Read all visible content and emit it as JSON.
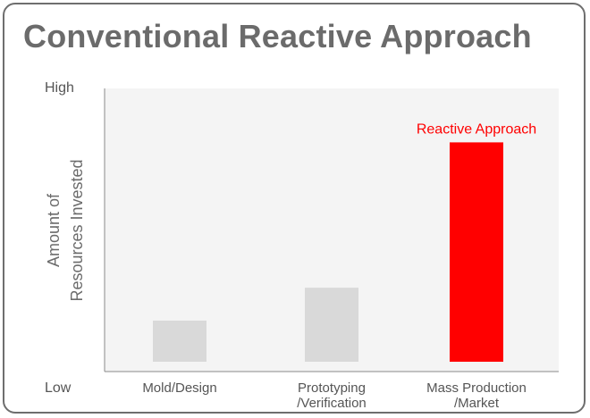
{
  "chart_data": {
    "type": "bar",
    "title": "Conventional Reactive Approach",
    "ylabel_lines": [
      "Amount of",
      "Resources Invested"
    ],
    "ytick_labels": {
      "high": "High",
      "low": "Low"
    },
    "categories": [
      [
        "Mold/Design"
      ],
      [
        "Prototyping",
        "/Verification"
      ],
      [
        "Mass Production",
        "/Market"
      ]
    ],
    "values": [
      15,
      27,
      80
    ],
    "ylim": [
      0,
      100
    ],
    "bar_colors": [
      "#d9d9d9",
      "#d9d9d9",
      "#ff0000"
    ],
    "annotations": [
      {
        "bar_index": 2,
        "text": "Reactive Approach",
        "color": "#ff0000"
      }
    ],
    "plot_background": "#f4f4f4",
    "grid": false,
    "legend": "none"
  }
}
